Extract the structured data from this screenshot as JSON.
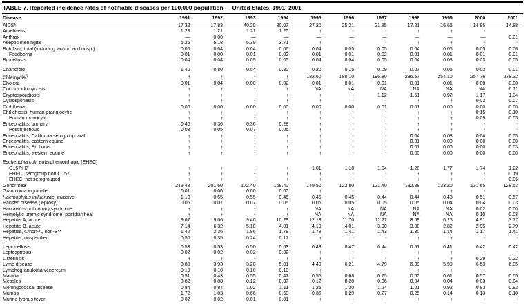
{
  "title": "TABLE 7. Reported incidence rates of notifiable diseases per 100,000 population — United States, 1991–2001",
  "columns": [
    "Disease",
    "1991",
    "1992",
    "1993",
    "1994",
    "1995",
    "1996",
    "1997",
    "1998",
    "1999",
    "2000",
    "2001"
  ],
  "rows": [
    {
      "name": "AIDS*",
      "values": [
        "17.32",
        "17.83",
        "40.20",
        "30.07",
        "27.20",
        "25.21",
        "21.85",
        "17.21",
        "16.66",
        "14.95",
        "14.88"
      ]
    },
    {
      "name": "Amebiasis",
      "values": [
        "1.23",
        "1.21",
        "1.21",
        "1.20",
        "†",
        "†",
        "†",
        "†",
        "†",
        "†",
        "†"
      ]
    },
    {
      "name": "Anthrax",
      "values": [
        "—",
        "0.00",
        "—",
        "—",
        "—",
        "—",
        "—",
        "—",
        "—",
        "—",
        "0.01"
      ]
    },
    {
      "name": "Aseptic meningitis",
      "values": [
        "6.26",
        "5.18",
        "5.39",
        "3.71",
        "†",
        "†",
        "†",
        "†",
        "†",
        "†",
        "†"
      ]
    },
    {
      "name": "Botulism, total (including wound and unsp.)",
      "values": [
        "0.06",
        "0.04",
        "0.04",
        "0.06",
        "0.04",
        "0.05",
        "0.05",
        "0.04",
        "0.06",
        "0.05",
        "0.06"
      ]
    },
    {
      "name": "Foodborne",
      "indent": 1,
      "values": [
        "0.01",
        "0.00",
        "0.01",
        "0.02",
        "0.01",
        "0.01",
        "0.02",
        "0.01",
        "0.01",
        "0.01",
        "0.01"
      ]
    },
    {
      "name": "Brucellosis",
      "values": [
        "0.04",
        "0.04",
        "0.05",
        "0.05",
        "0.04",
        "0.04",
        "0.05",
        "0.04",
        "0.03",
        "0.03",
        "0.05"
      ]
    },
    {
      "name": "Chancroid",
      "gap": true,
      "values": [
        "1.40",
        "0.80",
        "0.54",
        "0.30",
        "0.20",
        "0.15",
        "0.09",
        "0.07",
        "0.06",
        "0.03",
        "0.01"
      ]
    },
    {
      "name": "Chlamydia",
      "sup": "§",
      "values": [
        "†",
        "†",
        "†",
        "†",
        "182.60",
        "188.10",
        "196.80",
        "236.57",
        "254.10",
        "257.76",
        "278.32"
      ]
    },
    {
      "name": "Cholera",
      "values": [
        "0.01",
        "0.04",
        "0.00",
        "0.02",
        "0.01",
        "0.01",
        "0.01",
        "0.01",
        "0.01",
        "0.00",
        "0.00"
      ]
    },
    {
      "name": "Coccidioidomycosis",
      "values": [
        "†",
        "†",
        "†",
        "†",
        "NA",
        "NA",
        "NA",
        "NA",
        "NA",
        "NA",
        "6.71"
      ]
    },
    {
      "name": "Cryptosporidiosis",
      "values": [
        "†",
        "†",
        "†",
        "†",
        "†",
        "†",
        "1.12",
        "1.61",
        "0.92",
        "1.17",
        "1.34"
      ]
    },
    {
      "name": "Cyclosporiasis",
      "values": [
        "†",
        "†",
        "†",
        "†",
        "†",
        "†",
        "†",
        "†",
        "†",
        "0.03",
        "0.07"
      ]
    },
    {
      "name": "Diphtheria",
      "values": [
        "0.00",
        "0.00",
        "0.00",
        "0.00",
        "0.00",
        "0.00",
        "0.01",
        "0.01",
        "0.00",
        "0.00",
        "0.00"
      ]
    },
    {
      "name": "Ehrlichiosis, human granulocytic",
      "values": [
        "†",
        "†",
        "†",
        "†",
        "†",
        "†",
        "†",
        "†",
        "†",
        "0.15",
        "0.10"
      ]
    },
    {
      "name": "Human monocytic",
      "indent": 1,
      "values": [
        "†",
        "†",
        "†",
        "†",
        "†",
        "†",
        "†",
        "†",
        "†",
        "0.09",
        "0.05"
      ]
    },
    {
      "name": "Encephalitis, primary",
      "values": [
        "0.40",
        "0.30",
        "0.36",
        "0.28",
        "†",
        "†",
        "†",
        "†",
        "†",
        "†",
        "†"
      ]
    },
    {
      "name": "Postinfectious",
      "indent": 1,
      "values": [
        "0.03",
        "0.05",
        "0.07",
        "0.06",
        "†",
        "†",
        "†",
        "†",
        "†",
        "†",
        "†"
      ]
    },
    {
      "name": "Encephalitis, California serogroup viral",
      "values": [
        "†",
        "†",
        "†",
        "†",
        "†",
        "†",
        "†",
        "0.04",
        "0.03",
        "0.04",
        "0.05"
      ]
    },
    {
      "name": "Encephalitis, eastern equine",
      "values": [
        "†",
        "†",
        "†",
        "†",
        "†",
        "†",
        "†",
        "0.01",
        "0.00",
        "0.00",
        "0.00"
      ]
    },
    {
      "name": "Encephalitis, St. Louis",
      "values": [
        "†",
        "†",
        "†",
        "†",
        "†",
        "†",
        "†",
        "0.01",
        "0.00",
        "0.00",
        "0.03"
      ]
    },
    {
      "name": "Encephalitis, western equine",
      "values": [
        "†",
        "†",
        "†",
        "†",
        "†",
        "†",
        "†",
        "0.00",
        "0.00",
        "0.00",
        "0.00"
      ]
    },
    {
      "em": "Escherichia coli",
      "name": ", enterohemorrhagic (EHEC)",
      "gap": true,
      "values": []
    },
    {
      "name": "O157:H7",
      "indent": 1,
      "values": [
        "†",
        "†",
        "†",
        "†",
        "1.01",
        "1.18",
        "1.04",
        "1.28",
        "1.77",
        "1.74",
        "1.22"
      ]
    },
    {
      "name": "EHEC, serogroup non-O157",
      "indent": 1,
      "values": [
        "†",
        "†",
        "†",
        "†",
        "†",
        "†",
        "†",
        "†",
        "†",
        "†",
        "0.19"
      ]
    },
    {
      "name": "EHEC, not serogrouped",
      "indent": 1,
      "values": [
        "†",
        "†",
        "†",
        "†",
        "†",
        "†",
        "†",
        "†",
        "†",
        "†",
        "0.06"
      ]
    },
    {
      "name": "Gonorrhea",
      "values": [
        "249.48",
        "201.60",
        "172.40",
        "168.40",
        "149.50",
        "122.80",
        "121.40",
        "132.88",
        "133.20",
        "131.65",
        "128.53"
      ]
    },
    {
      "name": "Granuloma inguinale",
      "values": [
        "0.01",
        "0.00",
        "0.00",
        "0.00",
        "†",
        "†",
        "†",
        "†",
        "†",
        "†",
        "†"
      ]
    },
    {
      "em": "Haemophilus influenzae",
      "name": ", invasive",
      "values": [
        "1.10",
        "0.55",
        "0.55",
        "0.45",
        "0.45",
        "0.45",
        "0.44",
        "0.44",
        "0.48",
        "0.51",
        "0.57"
      ]
    },
    {
      "name": "Hansen disease (leprosy)",
      "values": [
        "0.06",
        "0.07",
        "0.07",
        "0.05",
        "0.06",
        "0.05",
        "0.05",
        "0.05",
        "0.04",
        "0.04",
        "0.03"
      ]
    },
    {
      "name": "Hantavirus pulmonary syndrome",
      "values": [
        "†",
        "†",
        "†",
        "†",
        "NA",
        "NA",
        "NA",
        "NA",
        "NA",
        "0.02",
        "0.00"
      ]
    },
    {
      "name": "Hemolytic uremic syndrome, postdiarrheal",
      "values": [
        "†",
        "†",
        "†",
        "†",
        "NA",
        "NA",
        "NA",
        "NA",
        "NA",
        "0.10",
        "0.08"
      ]
    },
    {
      "name": "Hepatitis A, acute",
      "values": [
        "9.67",
        "9.06",
        "9.40",
        "10.29",
        "12.13",
        "11.70",
        "11.22",
        "8.59",
        "6.25",
        "4.91",
        "3.77"
      ]
    },
    {
      "name": "Hepatitis B, acute",
      "values": [
        "7.14",
        "6.32",
        "5.18",
        "4.81",
        "4.19",
        "4.01",
        "3.90",
        "3.80",
        "2.82",
        "2.95",
        "2.79"
      ]
    },
    {
      "name": "Hepatitis, C/non-A, non-B**",
      "values": [
        "1.42",
        "2.36",
        "1.86",
        "1.78",
        "1.78",
        "1.41",
        "1.43",
        "1.30",
        "1.14",
        "1.17",
        "1.41"
      ]
    },
    {
      "name": "Hepatitis, unspecified",
      "values": [
        "0.50",
        "0.35",
        "0.24",
        "0.17",
        "†",
        "†",
        "†",
        "†",
        "†",
        "†",
        "†"
      ]
    },
    {
      "name": "Legionellosis",
      "gap": true,
      "values": [
        "0.53",
        "0.53",
        "0.50",
        "0.63",
        "0.48",
        "0.47",
        "0.44",
        "0.51",
        "0.41",
        "0.42",
        "0.42"
      ]
    },
    {
      "name": "Leptospirosis",
      "values": [
        "0.02",
        "0.02",
        "0.02",
        "0.02",
        "†",
        "†",
        "†",
        "†",
        "†",
        "†",
        "†"
      ]
    },
    {
      "name": "Listeriosis",
      "values": [
        "†",
        "†",
        "†",
        "†",
        "†",
        "†",
        "†",
        "†",
        "†",
        "0.29",
        "0.22"
      ]
    },
    {
      "name": "Lyme disease",
      "values": [
        "3.80",
        "3.93",
        "3.20",
        "5.01",
        "4.49",
        "6.21",
        "4.79",
        "6.39",
        "5.99",
        "6.53",
        "6.05"
      ]
    },
    {
      "name": "Lymphogranuloma venereum",
      "values": [
        "0.19",
        "0.10",
        "0.10",
        "0.10",
        "†",
        "†",
        "†",
        "†",
        "†",
        "†",
        "†"
      ]
    },
    {
      "name": "Malaria",
      "values": [
        "0.51",
        "0.43",
        "0.55",
        "0.47",
        "0.55",
        "0.68",
        "0.75",
        "0.60",
        "0.61",
        "0.57",
        "0.55"
      ]
    },
    {
      "name": "Measles",
      "values": [
        "3.82",
        "0.88",
        "0.12",
        "0.37",
        "0.12",
        "0.20",
        "0.06",
        "0.04",
        "0.04",
        "0.03",
        "0.04"
      ]
    },
    {
      "name": "Meningococcal disease",
      "values": [
        "0.84",
        "0.84",
        "1.02",
        "1.11",
        "1.25",
        "1.30",
        "1.24",
        "1.01",
        "0.92",
        "0.83",
        "0.83"
      ]
    },
    {
      "name": "Mumps",
      "values": [
        "1.72",
        "1.03",
        "0.66",
        "0.60",
        "0.35",
        "0.29",
        "0.27",
        "0.25",
        "0.14",
        "0.13",
        "0.10"
      ]
    },
    {
      "name": "Murine typhus fever",
      "values": [
        "0.02",
        "0.02",
        "0.01",
        "0.01",
        "†",
        "†",
        "†",
        "†",
        "†",
        "†",
        "†"
      ]
    }
  ]
}
